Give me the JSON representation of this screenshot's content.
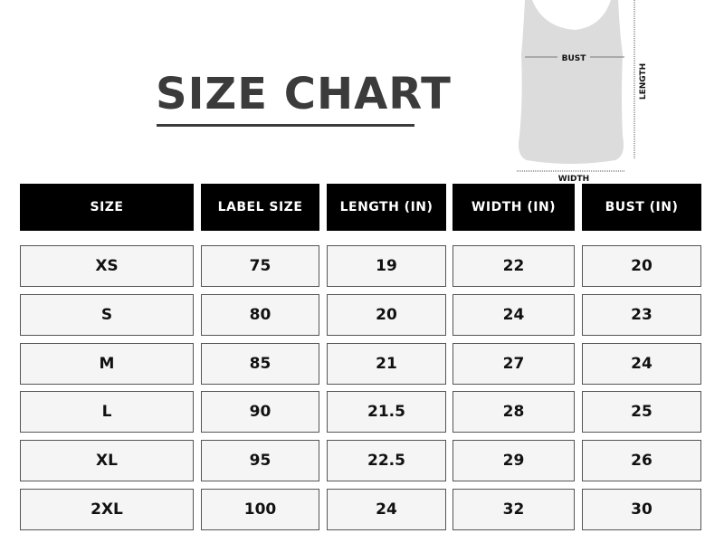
{
  "title": "SIZE CHART",
  "diagram": {
    "bust": "BUST",
    "length": "LENGTH",
    "width": "WIDTH"
  },
  "table": {
    "headers": [
      "SIZE",
      "LABEL SIZE",
      "LENGTH (IN)",
      "WIDTH (IN)",
      "BUST (IN)"
    ],
    "rows": [
      [
        "XS",
        "75",
        "19",
        "22",
        "20"
      ],
      [
        "S",
        "80",
        "20",
        "24",
        "23"
      ],
      [
        "M",
        "85",
        "21",
        "27",
        "24"
      ],
      [
        "L",
        "90",
        "21.5",
        "28",
        "25"
      ],
      [
        "XL",
        "95",
        "22.5",
        "29",
        "26"
      ],
      [
        "2XL",
        "100",
        "24",
        "32",
        "30"
      ]
    ]
  }
}
